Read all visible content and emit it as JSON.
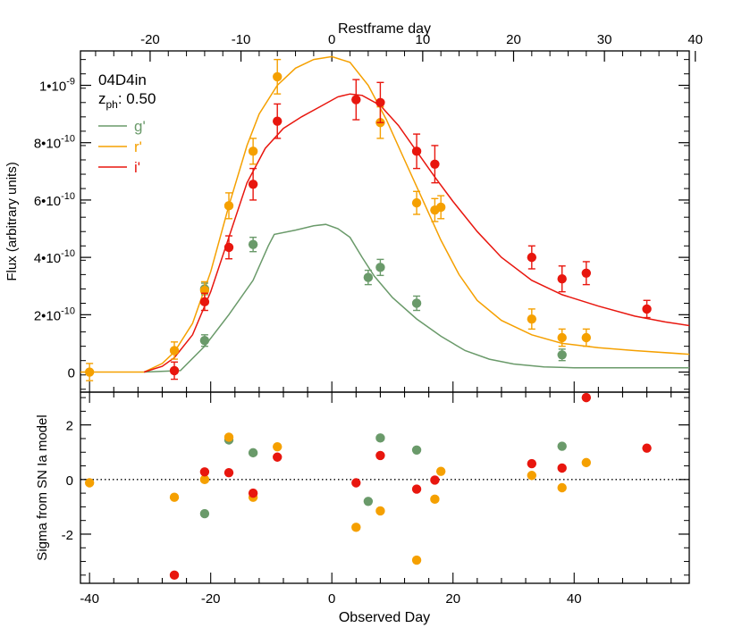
{
  "chart_data": [
    {
      "type": "scatter",
      "panel": "top",
      "title": "04D4in",
      "annotation_z_base": "z",
      "annotation_z_sub": "ph",
      "annotation_z_value": ": 0.50",
      "ylabel": "Flux (arbitrary units)",
      "x_top_label": "Restframe day",
      "x_top_ticks": [
        -20,
        -10,
        0,
        10,
        20,
        30,
        40
      ],
      "xlim": [
        -41.5,
        59
      ],
      "ylim": [
        -7e-11,
        1.12e-09
      ],
      "y_ticks": [
        {
          "value": 0,
          "label_base": "0",
          "label_exp": ""
        },
        {
          "value": 2e-10,
          "label_base": "2•10",
          "label_exp": "-10"
        },
        {
          "value": 4e-10,
          "label_base": "4•10",
          "label_exp": "-10"
        },
        {
          "value": 6e-10,
          "label_base": "6•10",
          "label_exp": "-10"
        },
        {
          "value": 8e-10,
          "label_base": "8•10",
          "label_exp": "-10"
        },
        {
          "value": 1e-09,
          "label_base": "1•10",
          "label_exp": "-9"
        }
      ],
      "legend_position": "top-left",
      "series": [
        {
          "name": "g'",
          "color": "#6a9a6a",
          "model": [
            [
              -31,
              0
            ],
            [
              -25,
              5e-12
            ],
            [
              -21,
              9e-11
            ],
            [
              -17,
              2e-10
            ],
            [
              -13,
              3.2e-10
            ],
            [
              -10.5,
              4.4e-10
            ],
            [
              -9.5,
              4.8e-10
            ],
            [
              -6,
              4.95e-10
            ],
            [
              -3,
              5.1e-10
            ],
            [
              -1,
              5.15e-10
            ],
            [
              1,
              5e-10
            ],
            [
              3,
              4.7e-10
            ],
            [
              5,
              4e-10
            ],
            [
              7,
              3.35e-10
            ],
            [
              10,
              2.6e-10
            ],
            [
              14,
              1.85e-10
            ],
            [
              18,
              1.25e-10
            ],
            [
              22,
              7.5e-11
            ],
            [
              26,
              4.5e-11
            ],
            [
              30,
              2.8e-11
            ],
            [
              35,
              1.8e-11
            ],
            [
              40,
              1.5e-11
            ],
            [
              59,
              1.5e-11
            ]
          ],
          "points": [
            {
              "x": -21,
              "y": 1.1e-10,
              "err": 2e-11
            },
            {
              "x": -21,
              "y": 2.9e-10,
              "err": 2e-11
            },
            {
              "x": -13,
              "y": 4.45e-10,
              "err": 2.5e-11
            },
            {
              "x": 6,
              "y": 3.3e-10,
              "err": 2.5e-11
            },
            {
              "x": 8,
              "y": 3.65e-10,
              "err": 2.8e-11
            },
            {
              "x": 14,
              "y": 2.4e-10,
              "err": 2.5e-11
            },
            {
              "x": 38,
              "y": 6e-11,
              "err": 2e-11
            }
          ]
        },
        {
          "name": "r'",
          "color": "#f5a000",
          "model": [
            [
              -41.5,
              0
            ],
            [
              -31,
              0
            ],
            [
              -28,
              3e-11
            ],
            [
              -26,
              7e-11
            ],
            [
              -23,
              1.7e-10
            ],
            [
              -20,
              3.5e-10
            ],
            [
              -17,
              5.8e-10
            ],
            [
              -14,
              7.9e-10
            ],
            [
              -12,
              9e-10
            ],
            [
              -9,
              1e-09
            ],
            [
              -6,
              1.06e-09
            ],
            [
              -3,
              1.09e-09
            ],
            [
              0,
              1.1e-09
            ],
            [
              3,
              1.08e-09
            ],
            [
              6,
              1e-09
            ],
            [
              9,
              8.8e-10
            ],
            [
              12,
              7.4e-10
            ],
            [
              15,
              6e-10
            ],
            [
              18,
              4.6e-10
            ],
            [
              21,
              3.4e-10
            ],
            [
              24,
              2.5e-10
            ],
            [
              28,
              1.8e-10
            ],
            [
              33,
              1.3e-10
            ],
            [
              38,
              1e-10
            ],
            [
              44,
              8.5e-11
            ],
            [
              50,
              7.5e-11
            ],
            [
              59,
              6.2e-11
            ]
          ],
          "points": [
            {
              "x": -40,
              "y": 0.0,
              "err": 3e-11
            },
            {
              "x": -26,
              "y": 7.5e-11,
              "err": 3e-11
            },
            {
              "x": -21,
              "y": 2.85e-10,
              "err": 3e-11
            },
            {
              "x": -17,
              "y": 5.8e-10,
              "err": 4.5e-11
            },
            {
              "x": -13,
              "y": 7.7e-10,
              "err": 4.5e-11
            },
            {
              "x": -9,
              "y": 1.03e-09,
              "err": 6e-11
            },
            {
              "x": 8,
              "y": 8.7e-10,
              "err": 5.5e-11
            },
            {
              "x": 14,
              "y": 5.9e-10,
              "err": 4e-11
            },
            {
              "x": 17,
              "y": 5.65e-10,
              "err": 4e-11
            },
            {
              "x": 18,
              "y": 5.75e-10,
              "err": 4e-11
            },
            {
              "x": 33,
              "y": 1.85e-10,
              "err": 3.5e-11
            },
            {
              "x": 38,
              "y": 1.2e-10,
              "err": 3e-11
            },
            {
              "x": 42,
              "y": 1.2e-10,
              "err": 3e-11
            }
          ]
        },
        {
          "name": "i'",
          "color": "#e8160e",
          "model": [
            [
              -31,
              0
            ],
            [
              -28,
              2e-11
            ],
            [
              -26,
              5e-11
            ],
            [
              -23,
              1.3e-10
            ],
            [
              -20,
              2.8e-10
            ],
            [
              -17,
              4.7e-10
            ],
            [
              -14,
              6.6e-10
            ],
            [
              -11,
              7.8e-10
            ],
            [
              -8,
              8.5e-10
            ],
            [
              -5,
              8.9e-10
            ],
            [
              -2,
              9.25e-10
            ],
            [
              1,
              9.6e-10
            ],
            [
              3,
              9.7e-10
            ],
            [
              5,
              9.65e-10
            ],
            [
              8,
              9.3e-10
            ],
            [
              11,
              8.6e-10
            ],
            [
              14,
              7.7e-10
            ],
            [
              17,
              6.8e-10
            ],
            [
              20,
              5.95e-10
            ],
            [
              24,
              4.9e-10
            ],
            [
              28,
              4e-10
            ],
            [
              33,
              3.2e-10
            ],
            [
              38,
              2.7e-10
            ],
            [
              44,
              2.3e-10
            ],
            [
              50,
              1.95e-10
            ],
            [
              55,
              1.75e-10
            ],
            [
              59,
              1.62e-10
            ]
          ],
          "points": [
            {
              "x": -26,
              "y": 5e-12,
              "err": 3e-11
            },
            {
              "x": -21,
              "y": 2.45e-10,
              "err": 3e-11
            },
            {
              "x": -17,
              "y": 4.35e-10,
              "err": 4e-11
            },
            {
              "x": -13,
              "y": 6.55e-10,
              "err": 5.5e-11
            },
            {
              "x": -9,
              "y": 8.75e-10,
              "err": 6e-11
            },
            {
              "x": 4,
              "y": 9.5e-10,
              "err": 7e-11
            },
            {
              "x": 8,
              "y": 9.4e-10,
              "err": 7e-11
            },
            {
              "x": 14,
              "y": 7.7e-10,
              "err": 6e-11
            },
            {
              "x": 17,
              "y": 7.25e-10,
              "err": 6.5e-11
            },
            {
              "x": 33,
              "y": 4e-10,
              "err": 4e-11
            },
            {
              "x": 38,
              "y": 3.25e-10,
              "err": 4.5e-11
            },
            {
              "x": 42,
              "y": 3.45e-10,
              "err": 4e-11
            },
            {
              "x": 52,
              "y": 2.2e-10,
              "err": 3e-11
            }
          ]
        }
      ]
    },
    {
      "type": "scatter",
      "panel": "bottom",
      "xlabel": "Observed Day",
      "ylabel": "Sigma from SN Ia model",
      "xlim": [
        -41.5,
        59
      ],
      "ylim": [
        -3.8,
        3.2
      ],
      "x_ticks": [
        -40,
        -20,
        0,
        20,
        40
      ],
      "y_ticks": [
        -2,
        0,
        2
      ],
      "zero_line": "dotted",
      "series": [
        {
          "name": "g'",
          "color": "#6a9a6a",
          "points": [
            {
              "x": -21,
              "y": -1.25
            },
            {
              "x": -17,
              "y": 1.45
            },
            {
              "x": -13,
              "y": 0.98
            },
            {
              "x": 6,
              "y": -0.8
            },
            {
              "x": 8,
              "y": 1.52
            },
            {
              "x": 14,
              "y": 1.08
            },
            {
              "x": 38,
              "y": 1.22
            }
          ]
        },
        {
          "name": "r'",
          "color": "#f5a000",
          "points": [
            {
              "x": -40,
              "y": -0.12
            },
            {
              "x": -26,
              "y": -0.65
            },
            {
              "x": -21,
              "y": 0.0
            },
            {
              "x": -17,
              "y": 1.55
            },
            {
              "x": -13,
              "y": -0.65
            },
            {
              "x": -9,
              "y": 1.2
            },
            {
              "x": 4,
              "y": -1.75
            },
            {
              "x": 8,
              "y": -1.15
            },
            {
              "x": 14,
              "y": -2.95
            },
            {
              "x": 17,
              "y": -0.72
            },
            {
              "x": 18,
              "y": 0.3
            },
            {
              "x": 33,
              "y": 0.15
            },
            {
              "x": 38,
              "y": -0.3
            },
            {
              "x": 42,
              "y": 0.62
            }
          ]
        },
        {
          "name": "i'",
          "color": "#e8160e",
          "points": [
            {
              "x": -26,
              "y": -3.5
            },
            {
              "x": -21,
              "y": 0.28
            },
            {
              "x": -17,
              "y": 0.25
            },
            {
              "x": -13,
              "y": -0.5
            },
            {
              "x": -9,
              "y": 0.82
            },
            {
              "x": 4,
              "y": -0.12
            },
            {
              "x": 8,
              "y": 0.88
            },
            {
              "x": 14,
              "y": -0.35
            },
            {
              "x": 17,
              "y": -0.02
            },
            {
              "x": 33,
              "y": 0.58
            },
            {
              "x": 38,
              "y": 0.42
            },
            {
              "x": 42,
              "y": 3.0
            },
            {
              "x": 52,
              "y": 1.15
            }
          ]
        }
      ]
    }
  ]
}
